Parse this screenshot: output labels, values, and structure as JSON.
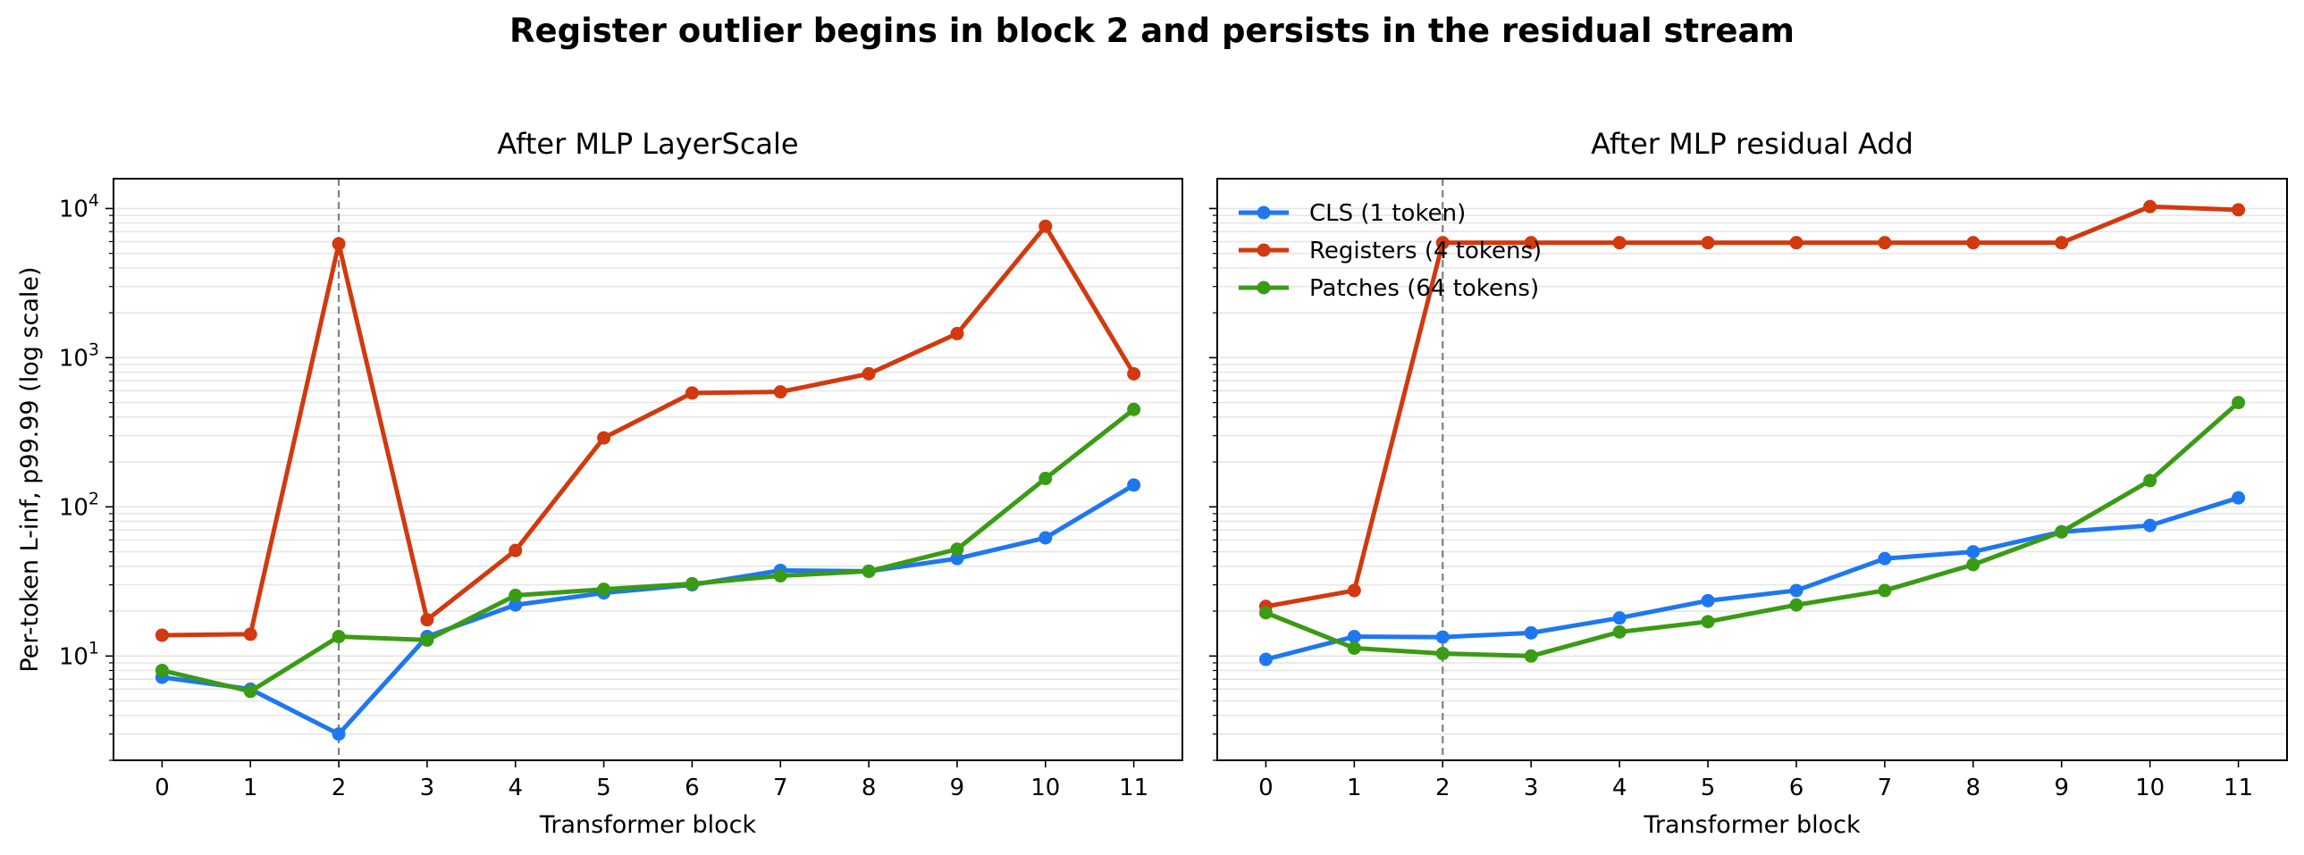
{
  "figure": {
    "title": "Register outlier begins in block 2 and persists in the residual stream"
  },
  "chart_data": [
    {
      "type": "line",
      "title": "After MLP LayerScale",
      "xlabel": "Transformer block",
      "ylabel": "Per-token L-inf, p99.99 (log scale)",
      "yscale": "log",
      "ylim": [
        2,
        15848
      ],
      "x": [
        0,
        1,
        2,
        3,
        4,
        5,
        6,
        7,
        8,
        9,
        10,
        11
      ],
      "xticks": [
        "0",
        "1",
        "2",
        "3",
        "4",
        "5",
        "6",
        "7",
        "8",
        "9",
        "10",
        "11"
      ],
      "yticks": [
        {
          "value": 10,
          "base": "10",
          "exp": "1"
        },
        {
          "value": 100,
          "base": "10",
          "exp": "2"
        },
        {
          "value": 1000,
          "base": "10",
          "exp": "3"
        },
        {
          "value": 10000,
          "base": "10",
          "exp": "4"
        }
      ],
      "vline": {
        "x": 2,
        "style": "dashed",
        "color": "#808080"
      },
      "grid": "horizontal minor",
      "legend": false,
      "series": [
        {
          "name": "CLS (1 token)",
          "color": "#1f77f0",
          "values": [
            7.2,
            6.0,
            3.0,
            13.5,
            22,
            26.5,
            30,
            37.5,
            37,
            45,
            62,
            140
          ]
        },
        {
          "name": "Registers (4 tokens)",
          "color": "#d2390f",
          "values": [
            13.8,
            14.0,
            5800,
            17.5,
            51,
            290,
            580,
            590,
            780,
            1450,
            7600,
            780
          ]
        },
        {
          "name": "Patches (64 tokens)",
          "color": "#3a9b14",
          "values": [
            8.0,
            5.8,
            13.5,
            12.8,
            25.5,
            28,
            30.5,
            34.5,
            37,
            52,
            155,
            450
          ]
        }
      ]
    },
    {
      "type": "line",
      "title": "After MLP residual Add",
      "xlabel": "Transformer block",
      "ylabel": "",
      "yscale": "log",
      "ylim": [
        2,
        15848
      ],
      "x": [
        0,
        1,
        2,
        3,
        4,
        5,
        6,
        7,
        8,
        9,
        10,
        11
      ],
      "xticks": [
        "0",
        "1",
        "2",
        "3",
        "4",
        "5",
        "6",
        "7",
        "8",
        "9",
        "10",
        "11"
      ],
      "vline": {
        "x": 2,
        "style": "dashed",
        "color": "#808080"
      },
      "grid": "horizontal minor",
      "legend": "upper left",
      "series": [
        {
          "name": "CLS (1 token)",
          "color": "#1f77f0",
          "values": [
            9.5,
            13.5,
            13.4,
            14.3,
            18,
            23.5,
            27.5,
            45,
            50,
            68,
            75,
            115
          ]
        },
        {
          "name": "Registers (4 tokens)",
          "color": "#d2390f",
          "values": [
            21.5,
            27.5,
            5900,
            5900,
            5900,
            5900,
            5900,
            5900,
            5900,
            5900,
            10300,
            9800
          ]
        },
        {
          "name": "Patches (64 tokens)",
          "color": "#3a9b14",
          "values": [
            19.5,
            11.3,
            10.4,
            10.0,
            14.5,
            17,
            22,
            27.5,
            41,
            68,
            150,
            500
          ]
        }
      ]
    }
  ]
}
